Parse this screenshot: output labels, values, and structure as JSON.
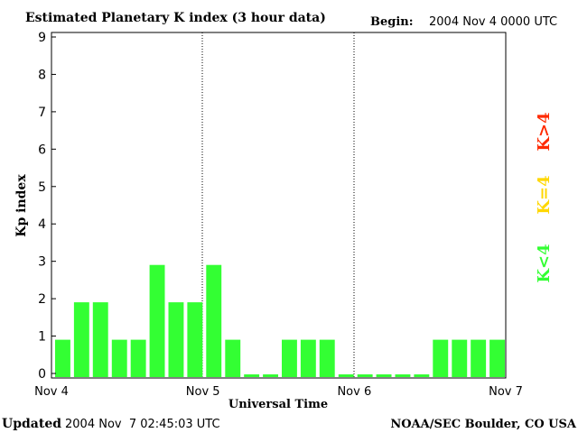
{
  "chart_data": {
    "type": "bar",
    "title": "Estimated Planetary K index (3 hour data)",
    "begin_label": "Begin:",
    "begin_value": "2004 Nov 4 0000 UTC",
    "ylabel": "Kp index",
    "xlabel": "Universal Time",
    "ylim": [
      0,
      9
    ],
    "yticks": [
      "0",
      "1",
      "2",
      "3",
      "4",
      "5",
      "6",
      "7",
      "8",
      "9"
    ],
    "xticks": [
      "Nov 4",
      "Nov 5",
      "Nov 6",
      "Nov 7"
    ],
    "values": [
      1,
      2,
      2,
      1,
      1,
      3,
      2,
      2,
      3,
      1,
      0.07,
      0.07,
      1,
      1,
      1,
      0.07,
      0.07,
      0.07,
      0.07,
      0.07,
      1,
      1,
      1,
      1
    ],
    "legend": [
      {
        "label": "K>4",
        "color": "#ff2a00"
      },
      {
        "label": "K=4",
        "color": "#ffd700"
      },
      {
        "label": "K<4",
        "color": "#33ff33"
      }
    ],
    "bar_color": "#33ff33",
    "grid": false
  },
  "footer": {
    "updated_label": "Updated",
    "updated_value": "2004 Nov  7 02:45:03 UTC",
    "source": "NOAA/SEC Boulder, CO USA"
  }
}
